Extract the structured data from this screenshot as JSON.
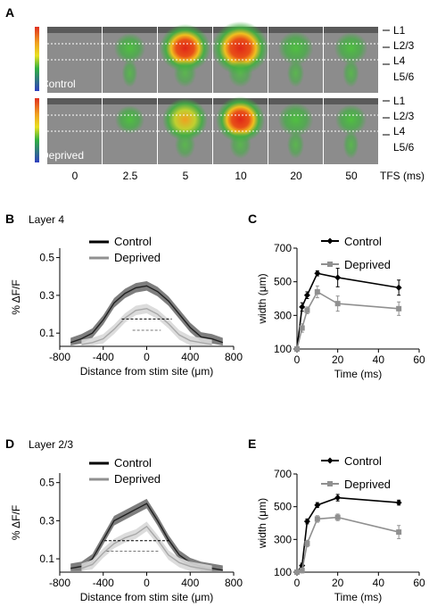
{
  "panel_a": {
    "letter": "A",
    "row_labels": [
      "Control",
      "Deprived"
    ],
    "layer_labels": [
      "L1",
      "L2/3",
      "L4",
      "L5/6"
    ],
    "tfs_values": [
      "0",
      "2.5",
      "5",
      "10",
      "20",
      "50"
    ],
    "tfs_axis_label": "TFS (ms)",
    "intensity": {
      "control": [
        0.0,
        0.35,
        0.85,
        1.0,
        0.45,
        0.4
      ],
      "deprived": [
        0.0,
        0.3,
        0.7,
        0.8,
        0.45,
        0.35
      ]
    },
    "colors": {
      "high": "#e03020",
      "mid": "#f0c020",
      "low": "#30b040",
      "background": "#8a8a8a"
    }
  },
  "panel_b": {
    "letter": "B",
    "title": "Layer 4",
    "legend": [
      "Control",
      "Deprived"
    ],
    "ylabel": "% ΔF/F",
    "xlabel": "Distance from stim site (μm)",
    "yticks": [
      "0.1",
      "0.3",
      "0.5"
    ],
    "xticks": [
      "-800",
      "-400",
      "0",
      "400",
      "800"
    ]
  },
  "panel_c": {
    "letter": "C",
    "legend": [
      "Control",
      "Deprived"
    ],
    "ylabel": "width (μm)",
    "xlabel": "Time (ms)",
    "yticks": [
      "100",
      "300",
      "500",
      "700"
    ],
    "xticks": [
      "0",
      "20",
      "40",
      "60"
    ]
  },
  "panel_d": {
    "letter": "D",
    "title": "Layer 2/3",
    "legend": [
      "Control",
      "Deprived"
    ],
    "ylabel": "% ΔF/F",
    "xlabel": "Distance from stim site (μm)",
    "yticks": [
      "0.1",
      "0.3",
      "0.5"
    ],
    "xticks": [
      "-800",
      "-400",
      "0",
      "400",
      "800"
    ]
  },
  "panel_e": {
    "letter": "E",
    "legend": [
      "Control",
      "Deprived"
    ],
    "ylabel": "width (μm)",
    "xlabel": "Time (ms)",
    "yticks": [
      "100",
      "300",
      "500",
      "700"
    ],
    "xticks": [
      "0",
      "20",
      "40",
      "60"
    ]
  },
  "chart_data": [
    {
      "panel": "B",
      "type": "line",
      "title": "Layer 4",
      "xlabel": "Distance from stim site (μm)",
      "ylabel": "% ΔF/F",
      "xlim": [
        -800,
        800
      ],
      "ylim": [
        0.03,
        0.55
      ],
      "legend_position": "top-center",
      "series": [
        {
          "name": "Control",
          "color": "#000000",
          "x": [
            -700,
            -600,
            -500,
            -400,
            -300,
            -200,
            -100,
            0,
            100,
            200,
            300,
            400,
            500,
            600,
            700
          ],
          "y": [
            0.05,
            0.07,
            0.1,
            0.17,
            0.26,
            0.31,
            0.34,
            0.35,
            0.32,
            0.27,
            0.2,
            0.13,
            0.08,
            0.07,
            0.05
          ],
          "half_max": 0.175,
          "half_max_x": [
            -230,
            230
          ]
        },
        {
          "name": "Deprived",
          "color": "#909090",
          "x": [
            -600,
            -500,
            -400,
            -300,
            -200,
            -100,
            0,
            100,
            200,
            300,
            400,
            500,
            600
          ],
          "y": [
            0.04,
            0.05,
            0.07,
            0.12,
            0.18,
            0.22,
            0.23,
            0.2,
            0.15,
            0.09,
            0.06,
            0.05,
            0.04
          ],
          "half_max": 0.115,
          "half_max_x": [
            -130,
            130
          ]
        }
      ]
    },
    {
      "panel": "C",
      "type": "line",
      "xlabel": "Time (ms)",
      "ylabel": "width (μm)",
      "xlim": [
        0,
        60
      ],
      "ylim": [
        100,
        700
      ],
      "legend_position": "top-right",
      "series": [
        {
          "name": "Control",
          "color": "#000000",
          "marker": "diamond",
          "x": [
            0,
            2.5,
            5,
            10,
            20,
            50
          ],
          "y": [
            100,
            350,
            420,
            550,
            525,
            465
          ],
          "err": [
            10,
            25,
            20,
            15,
            55,
            45
          ]
        },
        {
          "name": "Deprived",
          "color": "#909090",
          "marker": "square",
          "x": [
            0,
            2.5,
            5,
            10,
            20,
            50
          ],
          "y": [
            100,
            225,
            330,
            440,
            370,
            340
          ],
          "err": [
            10,
            25,
            20,
            35,
            45,
            40
          ]
        }
      ]
    },
    {
      "panel": "D",
      "type": "line",
      "title": "Layer 2/3",
      "xlabel": "Distance from stim site (μm)",
      "ylabel": "% ΔF/F",
      "xlim": [
        -800,
        800
      ],
      "ylim": [
        0.03,
        0.55
      ],
      "legend_position": "top-center",
      "series": [
        {
          "name": "Control",
          "color": "#000000",
          "x": [
            -700,
            -600,
            -500,
            -400,
            -300,
            -200,
            -100,
            0,
            100,
            200,
            300,
            400,
            500,
            600,
            700
          ],
          "y": [
            0.05,
            0.06,
            0.1,
            0.2,
            0.3,
            0.33,
            0.36,
            0.39,
            0.3,
            0.2,
            0.12,
            0.08,
            0.06,
            0.05,
            0.04
          ],
          "half_max": 0.195,
          "half_max_x": [
            -390,
            220
          ]
        },
        {
          "name": "Deprived",
          "color": "#909090",
          "x": [
            -600,
            -500,
            -400,
            -300,
            -200,
            -100,
            0,
            100,
            200,
            300,
            400,
            500,
            600
          ],
          "y": [
            0.05,
            0.07,
            0.13,
            0.18,
            0.21,
            0.23,
            0.27,
            0.2,
            0.12,
            0.08,
            0.06,
            0.05,
            0.04
          ],
          "half_max": 0.14,
          "half_max_x": [
            -370,
            110
          ]
        }
      ]
    },
    {
      "panel": "E",
      "type": "line",
      "xlabel": "Time (ms)",
      "ylabel": "width (μm)",
      "xlim": [
        0,
        60
      ],
      "ylim": [
        100,
        700
      ],
      "legend_position": "top-right",
      "series": [
        {
          "name": "Control",
          "color": "#000000",
          "marker": "diamond",
          "x": [
            0,
            2.5,
            5,
            10,
            20,
            50
          ],
          "y": [
            100,
            140,
            410,
            510,
            555,
            525
          ],
          "err": [
            10,
            15,
            15,
            15,
            20,
            15
          ]
        },
        {
          "name": "Deprived",
          "color": "#909090",
          "marker": "square",
          "x": [
            0,
            2.5,
            5,
            10,
            20,
            50
          ],
          "y": [
            100,
            110,
            275,
            425,
            435,
            345
          ],
          "err": [
            10,
            15,
            20,
            20,
            20,
            40
          ]
        }
      ]
    }
  ]
}
